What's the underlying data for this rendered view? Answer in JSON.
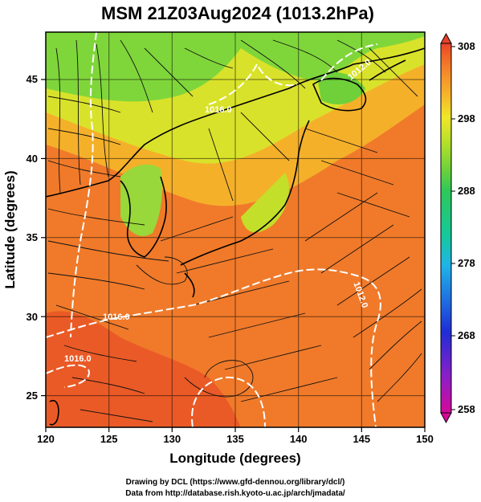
{
  "title": "MSM 21Z03Aug2024 (1013.2hPa)",
  "x_axis": {
    "label": "Longitude (degrees)",
    "ticks": [
      "120",
      "125",
      "130",
      "135",
      "140",
      "145",
      "150"
    ]
  },
  "y_axis": {
    "label": "Latitude  (degrees)",
    "ticks": [
      "25",
      "30",
      "35",
      "40",
      "45"
    ]
  },
  "colorbar": {
    "ticks": [
      "308",
      "298",
      "288",
      "278",
      "268",
      "258"
    ],
    "colors": [
      "#d6089b",
      "#8a1fc8",
      "#1f2ed6",
      "#1f6be0",
      "#1fb5e8",
      "#15c99b",
      "#2ec85a",
      "#6fd23a",
      "#b4e02a",
      "#f0e629",
      "#f7b52a",
      "#f58a2a",
      "#ef6226",
      "#e8422a"
    ]
  },
  "map": {
    "lon_range": [
      120,
      150
    ],
    "lat_range": [
      22.5,
      47.5
    ],
    "grid": true,
    "contour_labels": [
      "1016.0",
      "1016.0",
      "1012.0",
      "1012.0",
      "1016.0"
    ]
  },
  "credits": {
    "line1": "Drawing by DCL (https://www.gfd-dennou.org/library/dcl/)",
    "line2": "Data from http://database.rish.kyoto-u.ac.jp/arch/jmadata/"
  }
}
